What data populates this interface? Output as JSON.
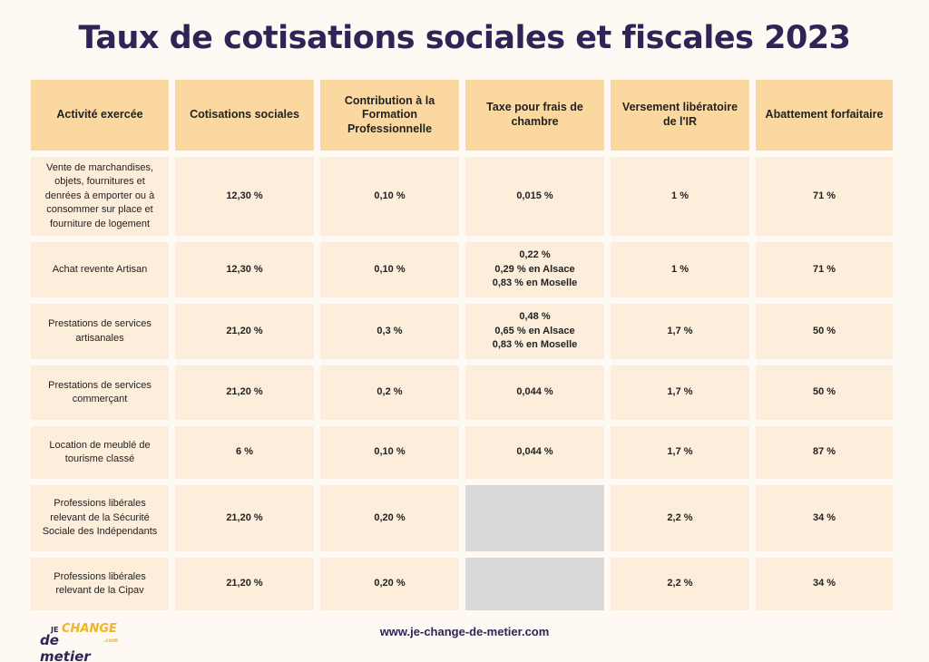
{
  "title": "Taux de cotisations sociales et fiscales 2023",
  "headers": [
    "Activité exercée",
    "Cotisations sociales",
    "Contribution à la Formation Professionnelle",
    "Taxe pour frais de chambre",
    "Versement libératoire de l'IR",
    "Abattement forfaitaire"
  ],
  "rows": [
    {
      "activity": "Vente de marchandises, objets, fournitures et denrées à emporter ou à consommer sur place et fourniture de logement",
      "cotisations": "12,30 %",
      "formation": "0,10 %",
      "taxe": [
        "0,015 %"
      ],
      "versement": "1 %",
      "abattement": "71 %"
    },
    {
      "activity": "Achat revente Artisan",
      "cotisations": "12,30 %",
      "formation": "0,10 %",
      "taxe": [
        "0,22 %",
        "0,29 % en Alsace",
        "0,83 % en Moselle"
      ],
      "versement": "1 %",
      "abattement": "71 %"
    },
    {
      "activity": "Prestations de services artisanales",
      "cotisations": "21,20 %",
      "formation": "0,3 %",
      "taxe": [
        "0,48 %",
        "0,65 % en Alsace",
        "0,83 % en Moselle"
      ],
      "versement": "1,7 %",
      "abattement": "50 %"
    },
    {
      "activity": "Prestations de services commerçant",
      "cotisations": "21,20 %",
      "formation": "0,2 %",
      "taxe": [
        "0,044 %"
      ],
      "versement": "1,7 %",
      "abattement": "50 %"
    },
    {
      "activity": "Location de meublé de tourisme classé",
      "cotisations": "6 %",
      "formation": "0,10 %",
      "taxe": [
        "0,044 %"
      ],
      "versement": "1,7 %",
      "abattement": "87 %"
    },
    {
      "activity": "Professions libérales relevant de la Sécurité Sociale des Indépendants",
      "cotisations": "21,20 %",
      "formation": "0,20 %",
      "taxe": [],
      "versement": "2,2 %",
      "abattement": "34 %"
    },
    {
      "activity": "Professions libérales relevant de la Cipav",
      "cotisations": "21,20 %",
      "formation": "0,20 %",
      "taxe": [],
      "versement": "2,2 %",
      "abattement": "34 %"
    }
  ],
  "footer": {
    "url": "www.je-change-de-metier.com",
    "logo": {
      "je": "JE",
      "change": "CHANGE",
      "de_metier": "de metier",
      "com": ".com"
    }
  },
  "colors": {
    "title": "#2f2456",
    "header_bg": "#fcd8a1",
    "cell_bg": "#fdeedb",
    "empty_cell_bg": "#d9d9d9",
    "page_bg": "#fefaf3",
    "logo_accent": "#f0b429"
  }
}
